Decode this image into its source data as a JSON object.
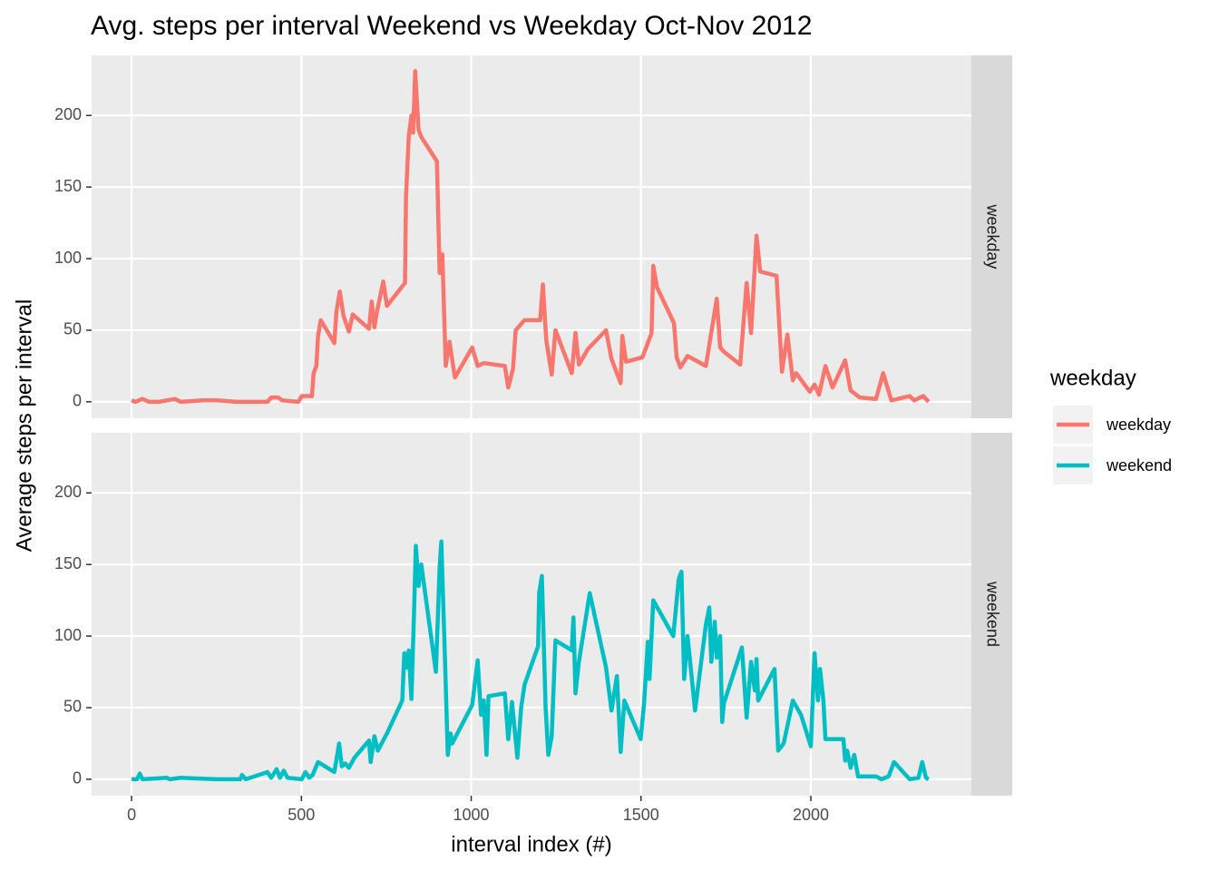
{
  "chart_data": {
    "type": "line",
    "title": "Avg. steps per interval Weekend vs Weekday Oct-Nov 2012",
    "x_label": "interval index (#)",
    "y_label": "Average steps per interval",
    "legend_title": "weekday",
    "xlim": [
      -117.75,
      2472.75
    ],
    "xticks": [
      0,
      500,
      1000,
      1500,
      2000
    ],
    "ylim": [
      -11.5,
      242
    ],
    "yticks": [
      0,
      50,
      100,
      150,
      200
    ],
    "grid": true,
    "series": [
      {
        "name": "weekday",
        "color": "#f8766d",
        "x": [
          0,
          11,
          32,
          51,
          80,
          128,
          144,
          211,
          251,
          309,
          400,
          411,
          432,
          443,
          491,
          501,
          531,
          536,
          544,
          549,
          557,
          597,
          603,
          613,
          624,
          640,
          651,
          699,
          707,
          715,
          720,
          741,
          752,
          805,
          808,
          816,
          824,
          829,
          835,
          845,
          853,
          899,
          907,
          915,
          925,
          936,
          952,
          1003,
          1019,
          1037,
          1099,
          1109,
          1123,
          1131,
          1157,
          1203,
          1211,
          1221,
          1237,
          1248,
          1296,
          1307,
          1317,
          1344,
          1397,
          1413,
          1440,
          1445,
          1456,
          1504,
          1531,
          1536,
          1547,
          1597,
          1605,
          1616,
          1637,
          1691,
          1723,
          1733,
          1744,
          1792,
          1811,
          1824,
          1840,
          1851,
          1899,
          1915,
          1931,
          1947,
          1957,
          1997,
          2011,
          2024,
          2043,
          2064,
          2101,
          2117,
          2144,
          2192,
          2213,
          2237,
          2291,
          2304,
          2331,
          2347
        ],
        "values": [
          1,
          0,
          2,
          0,
          0,
          2,
          0,
          1,
          1,
          0,
          0,
          3,
          3,
          1,
          0,
          4,
          4,
          20,
          25,
          46,
          57,
          41,
          63,
          77,
          60,
          49,
          61,
          51,
          70,
          52,
          60,
          84,
          67,
          83,
          143,
          185,
          200,
          188,
          231,
          190,
          185,
          168,
          90,
          103,
          25,
          42,
          17,
          38,
          25,
          27,
          25,
          10,
          23,
          50,
          57,
          57,
          82,
          43,
          19,
          50,
          20,
          48,
          26,
          37,
          50,
          30,
          13,
          46,
          28,
          31,
          48,
          95,
          80,
          55,
          31,
          24,
          32,
          25,
          72,
          38,
          35,
          26,
          83,
          48,
          116,
          91,
          88,
          21,
          47,
          15,
          20,
          7,
          12,
          5,
          25,
          10,
          29,
          8,
          3,
          2,
          20,
          1,
          4,
          1,
          4,
          0
        ]
      },
      {
        "name": "weekend",
        "color": "#00bfc4",
        "x": [
          0,
          16,
          24,
          32,
          104,
          112,
          144,
          251,
          320,
          325,
          336,
          400,
          411,
          427,
          437,
          448,
          459,
          501,
          512,
          523,
          533,
          549,
          597,
          611,
          619,
          629,
          640,
          656,
          699,
          704,
          715,
          725,
          752,
          797,
          803,
          811,
          816,
          824,
          832,
          837,
          845,
          853,
          896,
          907,
          912,
          923,
          931,
          939,
          944,
          1003,
          1019,
          1029,
          1037,
          1045,
          1051,
          1099,
          1109,
          1120,
          1136,
          1147,
          1157,
          1197,
          1200,
          1208,
          1219,
          1227,
          1237,
          1248,
          1296,
          1301,
          1307,
          1317,
          1349,
          1397,
          1413,
          1429,
          1440,
          1451,
          1499,
          1509,
          1520,
          1525,
          1536,
          1595,
          1611,
          1619,
          1627,
          1637,
          1659,
          1691,
          1701,
          1707,
          1717,
          1723,
          1733,
          1739,
          1744,
          1797,
          1811,
          1824,
          1835,
          1840,
          1845,
          1893,
          1904,
          1920,
          1947,
          1971,
          2000,
          2011,
          2021,
          2027,
          2037,
          2043,
          2096,
          2101,
          2107,
          2117,
          2128,
          2139,
          2192,
          2208,
          2229,
          2245,
          2291,
          2317,
          2328,
          2339,
          2347
        ],
        "values": [
          0,
          0,
          4,
          0,
          1,
          0,
          1,
          0,
          0,
          3,
          0,
          5,
          1,
          7,
          1,
          6,
          1,
          0,
          5,
          1,
          3,
          12,
          5,
          25,
          9,
          11,
          8,
          15,
          27,
          12,
          30,
          20,
          32,
          55,
          88,
          78,
          90,
          56,
          120,
          163,
          135,
          150,
          75,
          148,
          166,
          82,
          17,
          32,
          25,
          52,
          83,
          45,
          55,
          17,
          58,
          60,
          28,
          54,
          15,
          50,
          66,
          93,
          130,
          142,
          50,
          17,
          30,
          97,
          90,
          113,
          60,
          82,
          130,
          78,
          48,
          72,
          19,
          55,
          28,
          53,
          96,
          70,
          125,
          100,
          140,
          145,
          70,
          100,
          48,
          108,
          120,
          82,
          110,
          85,
          100,
          40,
          53,
          92,
          43,
          82,
          62,
          84,
          55,
          77,
          20,
          25,
          55,
          45,
          23,
          88,
          55,
          77,
          55,
          28,
          28,
          13,
          20,
          8,
          17,
          2,
          2,
          0,
          2,
          12,
          0,
          1,
          12,
          1,
          0
        ]
      }
    ]
  }
}
